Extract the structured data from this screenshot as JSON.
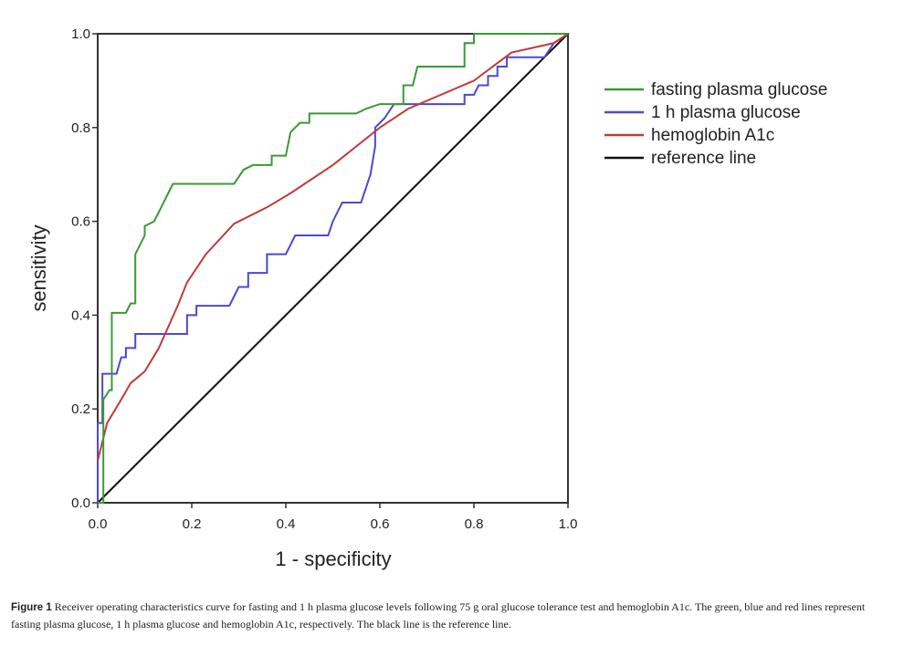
{
  "chart_data": {
    "type": "line",
    "title": "",
    "xlabel": "1 - specificity",
    "ylabel": "sensitivity",
    "xlim": [
      0,
      1
    ],
    "ylim": [
      0,
      1
    ],
    "xticks": [
      "0.0",
      "0.2",
      "0.4",
      "0.6",
      "0.8",
      "1.0"
    ],
    "yticks": [
      "0.0",
      "0.2",
      "0.4",
      "0.6",
      "0.8",
      "1.0"
    ],
    "grid": false,
    "legend_position": "right",
    "series": [
      {
        "name": "fasting plasma glucose",
        "color": "#3a9a34",
        "points": [
          [
            0,
            0
          ],
          [
            0.012,
            0
          ],
          [
            0.012,
            0.22
          ],
          [
            0.025,
            0.24
          ],
          [
            0.03,
            0.24
          ],
          [
            0.03,
            0.405
          ],
          [
            0.06,
            0.405
          ],
          [
            0.07,
            0.425
          ],
          [
            0.08,
            0.425
          ],
          [
            0.08,
            0.53
          ],
          [
            0.1,
            0.57
          ],
          [
            0.1,
            0.59
          ],
          [
            0.12,
            0.6
          ],
          [
            0.14,
            0.64
          ],
          [
            0.15,
            0.66
          ],
          [
            0.16,
            0.68
          ],
          [
            0.29,
            0.68
          ],
          [
            0.31,
            0.71
          ],
          [
            0.33,
            0.72
          ],
          [
            0.37,
            0.72
          ],
          [
            0.37,
            0.74
          ],
          [
            0.4,
            0.74
          ],
          [
            0.41,
            0.79
          ],
          [
            0.43,
            0.81
          ],
          [
            0.45,
            0.81
          ],
          [
            0.45,
            0.83
          ],
          [
            0.55,
            0.83
          ],
          [
            0.57,
            0.84
          ],
          [
            0.6,
            0.85
          ],
          [
            0.65,
            0.85
          ],
          [
            0.65,
            0.89
          ],
          [
            0.67,
            0.89
          ],
          [
            0.68,
            0.93
          ],
          [
            0.78,
            0.93
          ],
          [
            0.78,
            0.98
          ],
          [
            0.8,
            0.98
          ],
          [
            0.8,
            1
          ],
          [
            1,
            1
          ]
        ]
      },
      {
        "name": "1 h plasma glucose",
        "color": "#4a4ad0",
        "points": [
          [
            0,
            0
          ],
          [
            0,
            0.17
          ],
          [
            0.01,
            0.17
          ],
          [
            0.01,
            0.275
          ],
          [
            0.04,
            0.275
          ],
          [
            0.05,
            0.31
          ],
          [
            0.06,
            0.31
          ],
          [
            0.06,
            0.33
          ],
          [
            0.08,
            0.33
          ],
          [
            0.08,
            0.36
          ],
          [
            0.19,
            0.36
          ],
          [
            0.19,
            0.4
          ],
          [
            0.21,
            0.4
          ],
          [
            0.21,
            0.42
          ],
          [
            0.28,
            0.42
          ],
          [
            0.3,
            0.46
          ],
          [
            0.32,
            0.46
          ],
          [
            0.32,
            0.49
          ],
          [
            0.36,
            0.49
          ],
          [
            0.36,
            0.53
          ],
          [
            0.4,
            0.53
          ],
          [
            0.42,
            0.57
          ],
          [
            0.49,
            0.57
          ],
          [
            0.5,
            0.6
          ],
          [
            0.51,
            0.62
          ],
          [
            0.52,
            0.64
          ],
          [
            0.56,
            0.64
          ],
          [
            0.58,
            0.7
          ],
          [
            0.59,
            0.76
          ],
          [
            0.59,
            0.8
          ],
          [
            0.61,
            0.82
          ],
          [
            0.63,
            0.85
          ],
          [
            0.78,
            0.85
          ],
          [
            0.78,
            0.87
          ],
          [
            0.8,
            0.87
          ],
          [
            0.81,
            0.89
          ],
          [
            0.83,
            0.89
          ],
          [
            0.83,
            0.91
          ],
          [
            0.85,
            0.91
          ],
          [
            0.85,
            0.93
          ],
          [
            0.87,
            0.93
          ],
          [
            0.87,
            0.95
          ],
          [
            0.95,
            0.95
          ],
          [
            0.97,
            0.98
          ],
          [
            1,
            1
          ]
        ]
      },
      {
        "name": "hemoglobin A1c",
        "color": "#c03a3a",
        "points": [
          [
            0,
            0.09
          ],
          [
            0.02,
            0.17
          ],
          [
            0.05,
            0.22
          ],
          [
            0.07,
            0.255
          ],
          [
            0.1,
            0.28
          ],
          [
            0.13,
            0.33
          ],
          [
            0.17,
            0.42
          ],
          [
            0.19,
            0.47
          ],
          [
            0.23,
            0.53
          ],
          [
            0.29,
            0.595
          ],
          [
            0.36,
            0.63
          ],
          [
            0.41,
            0.66
          ],
          [
            0.5,
            0.72
          ],
          [
            0.6,
            0.8
          ],
          [
            0.66,
            0.84
          ],
          [
            0.8,
            0.9
          ],
          [
            0.88,
            0.96
          ],
          [
            0.97,
            0.98
          ],
          [
            1,
            1
          ]
        ]
      },
      {
        "name": "reference line",
        "color": "#111111",
        "points": [
          [
            0,
            0
          ],
          [
            1,
            1
          ]
        ]
      }
    ]
  },
  "caption": {
    "label": "Figure 1",
    "text": "Receiver operating characteristics curve for fasting and 1 h plasma glucose levels following 75 g oral glucose tolerance test and hemoglobin A1c. The green, blue and red lines represent fasting plasma glucose, 1 h plasma glucose and hemoglobin A1c, respectively. The black line is the reference line."
  }
}
